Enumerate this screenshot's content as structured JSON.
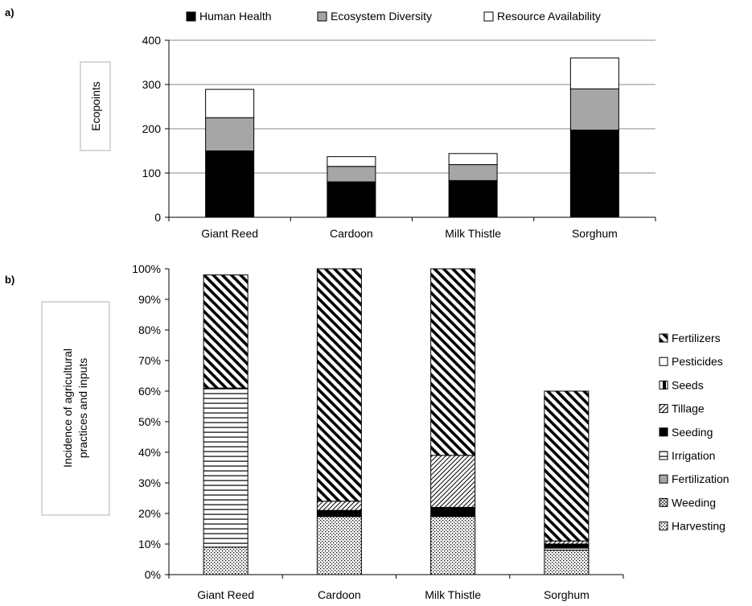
{
  "chart_data": [
    {
      "panel_label": "a)",
      "type": "bar",
      "stacked": true,
      "ylabel": "Ecopoints",
      "ylim": [
        0,
        400
      ],
      "yticks": [
        0,
        100,
        200,
        300,
        400
      ],
      "categories": [
        "Giant Reed",
        "Cardoon",
        "Milk Thistle",
        "Sorghum"
      ],
      "series": [
        {
          "name": "Human Health",
          "values": [
            150,
            80,
            83,
            197
          ],
          "color": "#000000",
          "pattern": "solid"
        },
        {
          "name": "Ecosystem Diversity",
          "values": [
            75,
            35,
            36,
            93
          ],
          "color": "#a6a6a6",
          "pattern": "solid"
        },
        {
          "name": "Resource Availability",
          "values": [
            64,
            22,
            25,
            70
          ],
          "color": "#ffffff",
          "pattern": "solid"
        }
      ],
      "legend_position": "top",
      "grid": true
    },
    {
      "panel_label": "b)",
      "type": "bar",
      "stacked": true,
      "percent": true,
      "ylabel_lines": [
        "Incidence of agricultural",
        "practices and inputs"
      ],
      "ylim": [
        0,
        100
      ],
      "yticks": [
        "0%",
        "10%",
        "20%",
        "30%",
        "40%",
        "50%",
        "60%",
        "70%",
        "80%",
        "90%",
        "100%"
      ],
      "categories": [
        "Giant Reed",
        "Cardoon",
        "Milk Thistle",
        "Sorghum"
      ],
      "series": [
        {
          "name": "Harvesting",
          "values": [
            9,
            19,
            19,
            8
          ],
          "pattern": "dots"
        },
        {
          "name": "Weeding",
          "values": [
            0,
            0,
            0,
            0
          ],
          "pattern": "cross"
        },
        {
          "name": "Fertilization",
          "values": [
            0,
            0,
            0,
            0
          ],
          "pattern": "gray"
        },
        {
          "name": "Irrigation",
          "values": [
            52,
            0,
            0,
            1
          ],
          "pattern": "hlines"
        },
        {
          "name": "Seeding",
          "values": [
            0,
            2,
            3,
            1
          ],
          "pattern": "solid"
        },
        {
          "name": "Tillage",
          "values": [
            0,
            3,
            17,
            1
          ],
          "pattern": "backdiag"
        },
        {
          "name": "Seeds",
          "values": [
            0,
            0,
            0,
            0
          ],
          "pattern": "vhalf"
        },
        {
          "name": "Pesticides",
          "values": [
            0,
            0,
            0,
            0
          ],
          "pattern": "white"
        },
        {
          "name": "Fertilizers",
          "values": [
            37,
            76,
            61,
            49
          ],
          "pattern": "diag"
        }
      ],
      "legend_order": [
        "Fertilizers",
        "Pesticides",
        "Seeds",
        "Tillage",
        "Seeding",
        "Irrigation",
        "Fertilization",
        "Weeding",
        "Harvesting"
      ],
      "legend_position": "right"
    }
  ]
}
